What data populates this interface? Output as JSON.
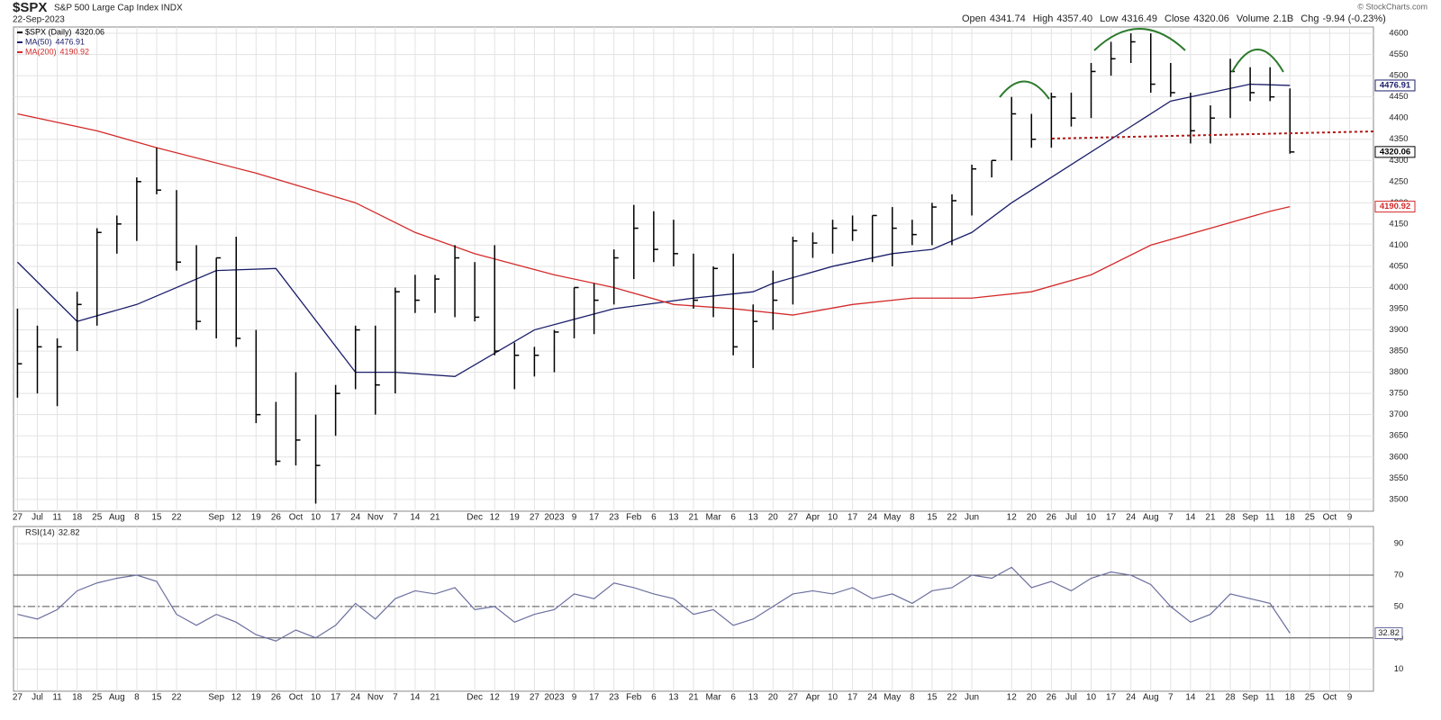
{
  "chart_data": [
    {
      "type": "ohlc",
      "header": {
        "symbol": "$SPX",
        "name": "S&P 500 Large Cap Index INDX",
        "date": "22-Sep-2023",
        "quote": [
          {
            "label": "Open",
            "value": "4341.74"
          },
          {
            "label": "High",
            "value": "4357.40"
          },
          {
            "label": "Low",
            "value": "4316.49"
          },
          {
            "label": "Close",
            "value": "4320.06"
          },
          {
            "label": "Volume",
            "value": "2.1B"
          },
          {
            "label": "Chg",
            "value": "-9.94 (-0.23%)"
          }
        ],
        "credit": "© StockCharts.com"
      },
      "legend": [
        {
          "name": "$SPX (Daily)",
          "last": "4320.06",
          "color": "#000000"
        }
      ],
      "x": [
        0,
        1,
        2,
        3,
        4,
        5,
        6,
        7,
        8,
        9,
        10,
        11,
        12,
        13,
        14,
        15,
        16,
        17,
        18,
        19,
        20,
        21,
        22,
        23,
        24,
        25,
        26,
        27,
        28,
        29,
        30,
        31,
        32,
        33,
        34,
        35,
        36,
        37,
        38,
        39,
        40,
        41,
        42,
        43,
        44,
        45,
        46,
        47,
        48,
        49,
        50,
        51,
        52,
        53,
        54,
        55,
        56,
        57,
        58,
        59,
        60,
        61,
        62,
        63,
        64
      ],
      "high": [
        3950,
        3910,
        3880,
        3990,
        4140,
        4170,
        4260,
        4330,
        4230,
        4100,
        4070,
        4120,
        3900,
        3730,
        3800,
        3700,
        3770,
        3910,
        3910,
        4000,
        4030,
        4030,
        4100,
        4060,
        4100,
        3870,
        3860,
        3900,
        4000,
        4010,
        4090,
        4195,
        4180,
        4160,
        4080,
        4050,
        4080,
        3960,
        4040,
        4120,
        4130,
        4160,
        4170,
        4170,
        4190,
        4160,
        4200,
        4220,
        4290,
        4300,
        4450,
        4410,
        4460,
        4460,
        4530,
        4580,
        4600,
        4600,
        4530,
        4460,
        4430,
        4540,
        4520,
        4520,
        4470
      ],
      "low": [
        3740,
        3750,
        3720,
        3850,
        3910,
        4080,
        4110,
        4220,
        4040,
        3900,
        3880,
        3860,
        3680,
        3580,
        3580,
        3490,
        3650,
        3760,
        3700,
        3750,
        3940,
        3940,
        3930,
        3920,
        3840,
        3760,
        3790,
        3800,
        3880,
        3890,
        3960,
        4020,
        4060,
        4050,
        3950,
        3930,
        3840,
        3810,
        3900,
        3960,
        4070,
        4080,
        4110,
        4060,
        4050,
        4100,
        4100,
        4100,
        4170,
        4260,
        4300,
        4330,
        4330,
        4380,
        4400,
        4500,
        4530,
        4460,
        4450,
        4340,
        4340,
        4400,
        4440,
        4440,
        4316
      ],
      "close": [
        3820,
        3860,
        3860,
        3960,
        4130,
        4150,
        4250,
        4230,
        4060,
        3920,
        4070,
        3880,
        3700,
        3590,
        3640,
        3580,
        3750,
        3900,
        3770,
        3990,
        3970,
        4020,
        4070,
        3930,
        3850,
        3840,
        3840,
        3895,
        4000,
        3970,
        4070,
        4140,
        4090,
        4080,
        3970,
        4045,
        3860,
        3920,
        3970,
        4110,
        4105,
        4140,
        4135,
        4170,
        4140,
        4125,
        4190,
        4205,
        4280,
        4300,
        4410,
        4350,
        4450,
        4400,
        4510,
        4540,
        4580,
        4480,
        4460,
        4370,
        4400,
        4510,
        4460,
        4450,
        4320
      ],
      "series": [
        {
          "name": "MA(50)",
          "last": "4476.91",
          "color": "#1c1f6b",
          "x": [
            0,
            3,
            6,
            10,
            13,
            17,
            19,
            22,
            26,
            30,
            34,
            37,
            38,
            41,
            44,
            46,
            48,
            50,
            53,
            56,
            58,
            60,
            62,
            64
          ],
          "values": [
            4060,
            3920,
            3960,
            4040,
            4045,
            3800,
            3800,
            3790,
            3900,
            3950,
            3975,
            3990,
            4010,
            4050,
            4080,
            4090,
            4130,
            4200,
            4290,
            4380,
            4440,
            4460,
            4480,
            4477
          ]
        },
        {
          "name": "MA(200)",
          "last": "4190.92",
          "color": "#d42a2a",
          "x": [
            0,
            4,
            7,
            12,
            17,
            20,
            23,
            27,
            30,
            33,
            36,
            39,
            42,
            45,
            48,
            51,
            54,
            57,
            60,
            63,
            64
          ],
          "values": [
            4410,
            4370,
            4330,
            4270,
            4200,
            4130,
            4080,
            4030,
            4000,
            3960,
            3950,
            3935,
            3960,
            3975,
            3975,
            3990,
            4030,
            4100,
            4140,
            4180,
            4191
          ]
        }
      ],
      "xlim": [
        -0.2,
        68.2
      ],
      "ylim": [
        3472,
        4615
      ],
      "xticks": [
        {
          "value": 0,
          "label": "27"
        },
        {
          "value": 1,
          "label": "Jul"
        },
        {
          "value": 2,
          "label": "11"
        },
        {
          "value": 3,
          "label": "18"
        },
        {
          "value": 4,
          "label": "25"
        },
        {
          "value": 5,
          "label": "Aug"
        },
        {
          "value": 6,
          "label": "8"
        },
        {
          "value": 7,
          "label": "15"
        },
        {
          "value": 8,
          "label": "22"
        },
        {
          "value": 10,
          "label": "Sep"
        },
        {
          "value": 11,
          "label": "12"
        },
        {
          "value": 12,
          "label": "19"
        },
        {
          "value": 13,
          "label": "26"
        },
        {
          "value": 14,
          "label": "Oct"
        },
        {
          "value": 15,
          "label": "10"
        },
        {
          "value": 16,
          "label": "17"
        },
        {
          "value": 17,
          "label": "24"
        },
        {
          "value": 18,
          "label": "Nov"
        },
        {
          "value": 19,
          "label": "7"
        },
        {
          "value": 20,
          "label": "14"
        },
        {
          "value": 21,
          "label": "21"
        },
        {
          "value": 23,
          "label": "Dec"
        },
        {
          "value": 24,
          "label": "12"
        },
        {
          "value": 25,
          "label": "19"
        },
        {
          "value": 26,
          "label": "27"
        },
        {
          "value": 27,
          "label": "2023"
        },
        {
          "value": 28,
          "label": "9"
        },
        {
          "value": 29,
          "label": "17"
        },
        {
          "value": 30,
          "label": "23"
        },
        {
          "value": 31,
          "label": "Feb"
        },
        {
          "value": 32,
          "label": "6"
        },
        {
          "value": 33,
          "label": "13"
        },
        {
          "value": 34,
          "label": "21"
        },
        {
          "value": 35,
          "label": "Mar"
        },
        {
          "value": 36,
          "label": "6"
        },
        {
          "value": 37,
          "label": "13"
        },
        {
          "value": 38,
          "label": "20"
        },
        {
          "value": 39,
          "label": "27"
        },
        {
          "value": 40,
          "label": "Apr"
        },
        {
          "value": 41,
          "label": "10"
        },
        {
          "value": 42,
          "label": "17"
        },
        {
          "value": 43,
          "label": "24"
        },
        {
          "value": 44,
          "label": "May"
        },
        {
          "value": 45,
          "label": "8"
        },
        {
          "value": 46,
          "label": "15"
        },
        {
          "value": 47,
          "label": "22"
        },
        {
          "value": 48,
          "label": "Jun"
        },
        {
          "value": 50,
          "label": "12"
        },
        {
          "value": 51,
          "label": "20"
        },
        {
          "value": 52,
          "label": "26"
        },
        {
          "value": 53,
          "label": "Jul"
        },
        {
          "value": 54,
          "label": "10"
        },
        {
          "value": 55,
          "label": "17"
        },
        {
          "value": 56,
          "label": "24"
        },
        {
          "value": 57,
          "label": "Aug"
        },
        {
          "value": 58,
          "label": "7"
        },
        {
          "value": 59,
          "label": "14"
        },
        {
          "value": 60,
          "label": "21"
        },
        {
          "value": 61,
          "label": "28"
        },
        {
          "value": 62,
          "label": "Sep"
        },
        {
          "value": 63,
          "label": "11"
        },
        {
          "value": 64,
          "label": "18"
        },
        {
          "value": 65,
          "label": "25"
        },
        {
          "value": 66,
          "label": "Oct"
        },
        {
          "value": 67,
          "label": "9"
        }
      ],
      "yticks": [
        3500,
        3550,
        3600,
        3650,
        3700,
        3750,
        3800,
        3850,
        3900,
        3950,
        4000,
        4050,
        4100,
        4150,
        4200,
        4250,
        4300,
        4350,
        4400,
        4450,
        4500,
        4550,
        4600
      ],
      "grid": true
    },
    {
      "type": "line",
      "title": "RSI(14)",
      "last": "32.82",
      "series": [
        {
          "name": "RSI(14)",
          "color": "#6b6f9e",
          "x": [
            0,
            1,
            2,
            3,
            4,
            5,
            6,
            7,
            8,
            9,
            10,
            11,
            12,
            13,
            14,
            15,
            16,
            17,
            18,
            19,
            20,
            21,
            22,
            23,
            24,
            25,
            26,
            27,
            28,
            29,
            30,
            31,
            32,
            33,
            34,
            35,
            36,
            37,
            38,
            39,
            40,
            41,
            42,
            43,
            44,
            45,
            46,
            47,
            48,
            49,
            50,
            51,
            52,
            53,
            54,
            55,
            56,
            57,
            58,
            59,
            60,
            61,
            62,
            63,
            64
          ],
          "values": [
            45,
            42,
            48,
            60,
            65,
            68,
            70,
            66,
            45,
            38,
            45,
            40,
            32,
            28,
            35,
            30,
            38,
            52,
            42,
            55,
            60,
            58,
            62,
            48,
            50,
            40,
            45,
            48,
            58,
            55,
            65,
            62,
            58,
            55,
            45,
            48,
            38,
            42,
            50,
            58,
            60,
            58,
            62,
            55,
            58,
            52,
            60,
            62,
            70,
            68,
            75,
            62,
            66,
            60,
            68,
            72,
            70,
            64,
            50,
            40,
            45,
            58,
            55,
            52,
            33
          ]
        }
      ],
      "levels": [
        30,
        50,
        70
      ],
      "xlim": [
        -0.2,
        68.2
      ],
      "ylim": [
        -4,
        101
      ],
      "yticks": [
        10,
        30,
        50,
        70,
        90
      ],
      "grid": true
    }
  ]
}
